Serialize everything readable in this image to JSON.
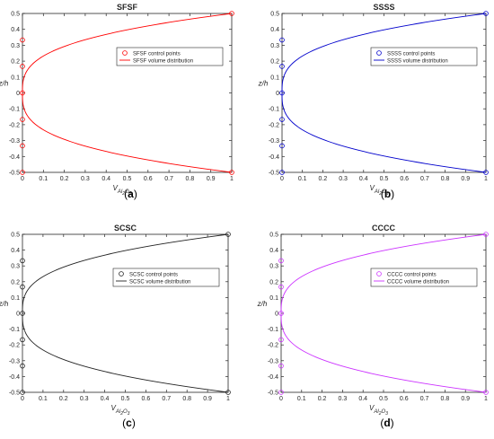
{
  "chart_data": [
    {
      "type": "line",
      "title": "SFSF",
      "caption": "(a)",
      "color": "#ff0000",
      "ylabel": "z/h",
      "xlabel": {
        "base": "V",
        "sub": "Al",
        "sub2": "2",
        "mid": "O",
        "sub3": "3"
      },
      "xlim": [
        0,
        1
      ],
      "ylim": [
        -0.5,
        0.5
      ],
      "xticks": [
        "0",
        "0.1",
        "0.2",
        "0.3",
        "0.4",
        "0.5",
        "0.6",
        "0.7",
        "0.8",
        "0.9",
        "1"
      ],
      "yticks": [
        "-0.5",
        "-0.4",
        "-0.3",
        "-0.2",
        "-0.1",
        "0",
        "0.1",
        "0.2",
        "0.3",
        "0.4",
        "0.5"
      ],
      "legend_position": "top-right",
      "series": [
        {
          "name": "SFSF control points",
          "kind": "markers",
          "x": [
            0,
            0,
            0,
            0,
            0,
            0,
            1,
            1
          ],
          "y": [
            -0.5,
            -0.333,
            -0.167,
            0,
            0.167,
            0.333,
            0.5,
            -0.5
          ]
        },
        {
          "name": "SFSF volume distribution",
          "kind": "line",
          "exponent": 3
        }
      ]
    },
    {
      "type": "line",
      "title": "SSSS",
      "caption": "(b)",
      "color": "#0000cc",
      "ylabel": "z/h",
      "xlabel": {
        "base": "V",
        "sub": "Al",
        "sub2": "2",
        "mid": "O",
        "sub3": "3"
      },
      "xlim": [
        0,
        1
      ],
      "ylim": [
        -0.5,
        0.5
      ],
      "xticks": [
        "0",
        "0.1",
        "0.2",
        "0.3",
        "0.4",
        "0.5",
        "0.6",
        "0.7",
        "0.8",
        "0.9",
        "1"
      ],
      "yticks": [
        "-0.5",
        "-0.4",
        "-0.3",
        "-0.2",
        "-0.1",
        "0",
        "0.1",
        "0.2",
        "0.3",
        "0.4",
        "0.5"
      ],
      "legend_position": "top-right",
      "series": [
        {
          "name": "SSSS control points",
          "kind": "markers",
          "x": [
            0,
            0,
            0,
            0,
            0,
            0,
            1,
            1
          ],
          "y": [
            -0.5,
            -0.333,
            -0.167,
            0,
            0.167,
            0.333,
            0.5,
            -0.5
          ]
        },
        {
          "name": "SSSS volume distribution",
          "kind": "line",
          "exponent": 3
        }
      ]
    },
    {
      "type": "line",
      "title": "SCSC",
      "caption": "(c)",
      "color": "#222222",
      "ylabel": "z/h",
      "xlabel": {
        "base": "V",
        "sub": "Al",
        "sub2": "2",
        "mid": "O",
        "sub3": "3"
      },
      "xlim": [
        0,
        1
      ],
      "ylim": [
        -0.5,
        0.5
      ],
      "xticks": [
        "0",
        "0.1",
        "0.2",
        "0.3",
        "0.4",
        "0.5",
        "0.6",
        "0.7",
        "0.8",
        "0.9",
        "1"
      ],
      "yticks": [
        "-0.5",
        "-0.4",
        "-0.3",
        "-0.2",
        "-0.1",
        "0",
        "0.1",
        "0.2",
        "0.3",
        "0.4",
        "0.5"
      ],
      "legend_position": "top-right",
      "series": [
        {
          "name": "SCSC control points",
          "kind": "markers",
          "x": [
            0,
            0,
            0,
            0,
            0,
            0,
            1,
            1
          ],
          "y": [
            -0.5,
            -0.333,
            -0.167,
            0,
            0.167,
            0.333,
            0.5,
            -0.5
          ]
        },
        {
          "name": "SCSC volume distribution",
          "kind": "line",
          "exponent": 3
        }
      ]
    },
    {
      "type": "line",
      "title": "CCCC",
      "caption": "(d)",
      "color": "#cc33ff",
      "ylabel": "z/h",
      "xlabel": {
        "base": "V",
        "sub": "Al",
        "sub2": "2",
        "mid": "O",
        "sub3": "3"
      },
      "xlim": [
        0,
        1
      ],
      "ylim": [
        -0.5,
        0.5
      ],
      "xticks": [
        "0",
        "0.1",
        "0.2",
        "0.3",
        "0.4",
        "0.5",
        "0.6",
        "0.7",
        "0.8",
        "0.9",
        "1"
      ],
      "yticks": [
        "-0.5",
        "-0.4",
        "-0.3",
        "-0.2",
        "-0.1",
        "0",
        "0.1",
        "0.2",
        "0.3",
        "0.4",
        "0.5"
      ],
      "legend_position": "top-right",
      "series": [
        {
          "name": "CCCC control points",
          "kind": "markers",
          "x": [
            0,
            0,
            0,
            0,
            0,
            0,
            1,
            1
          ],
          "y": [
            -0.5,
            -0.333,
            -0.167,
            0,
            0.167,
            0.333,
            0.5,
            -0.5
          ]
        },
        {
          "name": "CCCC volume distribution",
          "kind": "line",
          "exponent": 3
        }
      ]
    }
  ]
}
